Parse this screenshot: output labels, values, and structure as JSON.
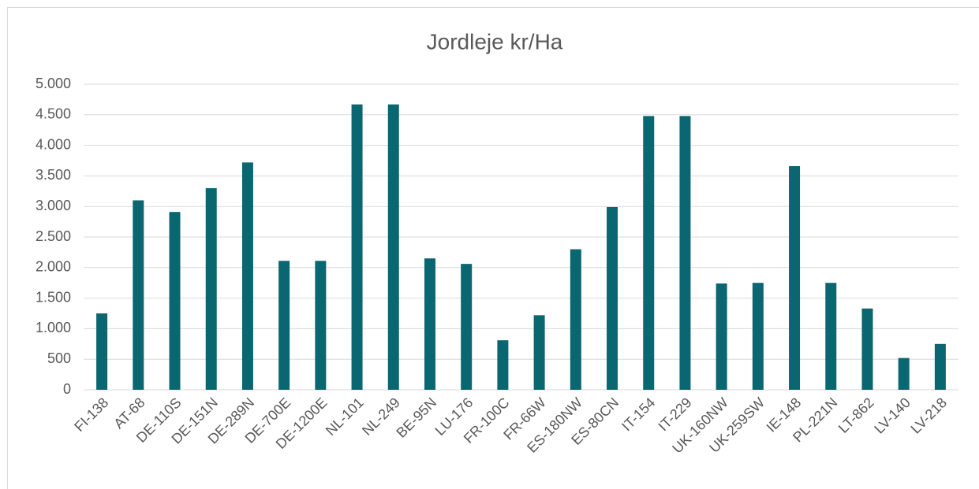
{
  "chart_data": {
    "type": "bar",
    "title": "Jordleje kr/Ha",
    "categories": [
      "FI-138",
      "AT-68",
      "DE-110S",
      "DE-151N",
      "DE-289N",
      "DE-700E",
      "DE-1200E",
      "NL-101",
      "NL-249",
      "BE-95N",
      "LU-176",
      "FR-100C",
      "FR-66W",
      "ES-180NW",
      "ES-80CN",
      "IT-154",
      "IT-229",
      "UK-160NW",
      "UK-259SW",
      "IE-148",
      "PL-221N",
      "LT-862",
      "LV-140",
      "LV-218"
    ],
    "values": [
      1250,
      3100,
      2910,
      3300,
      3720,
      2110,
      2110,
      4670,
      4670,
      2150,
      2060,
      810,
      1220,
      2300,
      2990,
      4480,
      4480,
      1740,
      1750,
      3660,
      1750,
      1330,
      520,
      750
    ],
    "color": "#0a6670",
    "ylim": [
      0,
      5000
    ],
    "yticks": [
      0,
      500,
      {
        "value": 1000,
        "label": "1.000"
      },
      {
        "value": 1500,
        "label": "1.500"
      },
      {
        "value": 2000,
        "label": "2.000"
      },
      {
        "value": 2500,
        "label": "2.500"
      },
      {
        "value": 3000,
        "label": "3.000"
      },
      {
        "value": 3500,
        "label": "3.500"
      },
      {
        "value": 4000,
        "label": "4.000"
      },
      {
        "value": 4500,
        "label": "4.500"
      },
      {
        "value": 5000,
        "label": "5.000"
      }
    ],
    "grid": true
  }
}
